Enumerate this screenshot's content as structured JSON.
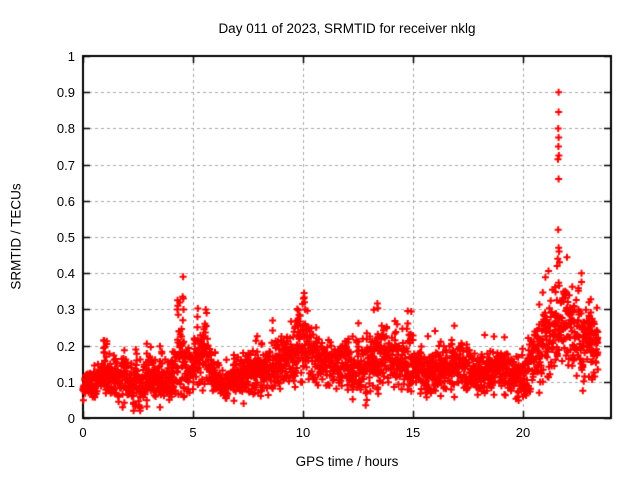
{
  "chart_data": {
    "type": "scatter",
    "title": "Day 011 of 2023, SRMTID for receiver nklg",
    "xlabel": "GPS time / hours",
    "ylabel": "SRMTID / TECUs",
    "xlim": [
      0,
      24
    ],
    "ylim": [
      0,
      1
    ],
    "xtick_values": [
      0,
      5,
      10,
      15,
      20
    ],
    "xtick_labels": [
      "0",
      "5",
      "10",
      "15",
      "20"
    ],
    "ytick_values": [
      0,
      0.1,
      0.2,
      0.3,
      0.4,
      0.5,
      0.6,
      0.7,
      0.8,
      0.9,
      1
    ],
    "ytick_labels": [
      "0",
      "0.1",
      "0.2",
      "0.3",
      "0.4",
      "0.5",
      "0.6",
      "0.7",
      "0.8",
      "0.9",
      "1"
    ],
    "grid": true,
    "grid_color": "#a8a8a8",
    "border_color": "#000000",
    "background_color": "#ffffff",
    "legend": "none",
    "marker": {
      "shape": "plus",
      "color": "#ff0000",
      "size": 7
    },
    "series": [
      {
        "name": "SRMTID",
        "time_span_hours": [
          0,
          23.4
        ],
        "band_keypoints_hour_mean_spread": [
          [
            0.0,
            0.08,
            0.03
          ],
          [
            0.5,
            0.1,
            0.04
          ],
          [
            1.0,
            0.13,
            0.045
          ],
          [
            1.5,
            0.11,
            0.05
          ],
          [
            2.0,
            0.1,
            0.05
          ],
          [
            2.6,
            0.09,
            0.055
          ],
          [
            3.1,
            0.12,
            0.05
          ],
          [
            3.6,
            0.1,
            0.05
          ],
          [
            4.1,
            0.11,
            0.05
          ],
          [
            4.45,
            0.17,
            0.1
          ],
          [
            4.7,
            0.13,
            0.06
          ],
          [
            5.1,
            0.15,
            0.06
          ],
          [
            5.6,
            0.19,
            0.08
          ],
          [
            6.0,
            0.11,
            0.04
          ],
          [
            6.5,
            0.09,
            0.035
          ],
          [
            7.0,
            0.12,
            0.05
          ],
          [
            7.6,
            0.13,
            0.055
          ],
          [
            8.1,
            0.12,
            0.055
          ],
          [
            8.6,
            0.14,
            0.06
          ],
          [
            9.1,
            0.16,
            0.06
          ],
          [
            9.6,
            0.17,
            0.07
          ],
          [
            10.0,
            0.21,
            0.1
          ],
          [
            10.4,
            0.18,
            0.07
          ],
          [
            11.0,
            0.15,
            0.055
          ],
          [
            11.5,
            0.14,
            0.05
          ],
          [
            12.0,
            0.15,
            0.055
          ],
          [
            12.6,
            0.13,
            0.065
          ],
          [
            13.1,
            0.16,
            0.07
          ],
          [
            13.6,
            0.18,
            0.07
          ],
          [
            14.1,
            0.16,
            0.065
          ],
          [
            14.6,
            0.17,
            0.07
          ],
          [
            15.0,
            0.16,
            0.06
          ],
          [
            15.6,
            0.12,
            0.05
          ],
          [
            16.1,
            0.13,
            0.05
          ],
          [
            16.6,
            0.14,
            0.055
          ],
          [
            17.1,
            0.15,
            0.06
          ],
          [
            17.6,
            0.13,
            0.05
          ],
          [
            18.1,
            0.12,
            0.05
          ],
          [
            18.6,
            0.13,
            0.05
          ],
          [
            19.1,
            0.14,
            0.05
          ],
          [
            19.6,
            0.11,
            0.045
          ],
          [
            20.1,
            0.13,
            0.055
          ],
          [
            20.6,
            0.17,
            0.07
          ],
          [
            21.1,
            0.22,
            0.09
          ],
          [
            21.6,
            0.27,
            0.11
          ],
          [
            22.1,
            0.25,
            0.1
          ],
          [
            22.6,
            0.2,
            0.09
          ],
          [
            23.0,
            0.2,
            0.085
          ],
          [
            23.4,
            0.18,
            0.08
          ]
        ],
        "outlier_points": [
          [
            21.62,
            0.9
          ],
          [
            21.62,
            0.845
          ],
          [
            21.6,
            0.8
          ],
          [
            21.62,
            0.775
          ],
          [
            21.61,
            0.75
          ],
          [
            21.63,
            0.725
          ],
          [
            21.59,
            0.715
          ],
          [
            21.62,
            0.66
          ],
          [
            21.6,
            0.52
          ],
          [
            21.62,
            0.47
          ],
          [
            21.64,
            0.46
          ],
          [
            21.58,
            0.44
          ],
          [
            21.66,
            0.43
          ],
          [
            21.55,
            0.42
          ],
          [
            4.55,
            0.39
          ],
          [
            4.53,
            0.335
          ],
          [
            4.56,
            0.33
          ],
          [
            4.3,
            0.325
          ],
          [
            4.31,
            0.31
          ],
          [
            4.29,
            0.3
          ],
          [
            4.33,
            0.285
          ],
          [
            4.57,
            0.3
          ],
          [
            4.54,
            0.27
          ],
          [
            10.05,
            0.345
          ],
          [
            10.02,
            0.33
          ],
          [
            10.07,
            0.32
          ],
          [
            9.98,
            0.315
          ],
          [
            10.1,
            0.3
          ],
          [
            5.58,
            0.3
          ],
          [
            5.62,
            0.29
          ],
          [
            1.8,
            0.03
          ],
          [
            2.55,
            0.035
          ],
          [
            3.5,
            0.03
          ],
          [
            7.3,
            0.04
          ],
          [
            12.85,
            0.035
          ],
          [
            12.9,
            0.05
          ],
          [
            20.0,
            0.06
          ]
        ],
        "samples_per_hour": 50,
        "points_per_sample": 2,
        "streak_probability": 0.07,
        "random_seed": 987654321
      }
    ]
  }
}
